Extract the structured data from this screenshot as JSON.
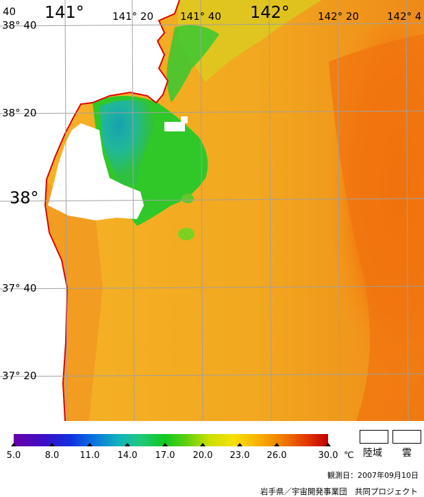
{
  "map": {
    "longitude_labels": [
      {
        "text": "141°",
        "large": true
      },
      {
        "text": "141° 20",
        "large": false
      },
      {
        "text": "141° 40",
        "large": false
      },
      {
        "text": "142°",
        "large": true
      },
      {
        "text": "142° 20",
        "large": false
      },
      {
        "text": "142° 4",
        "large": false
      }
    ],
    "latitude_labels": [
      {
        "text": "38° 40",
        "large": false
      },
      {
        "text": "38° 20",
        "large": false
      },
      {
        "text": "38°",
        "large": true
      },
      {
        "text": "37° 40",
        "large": false
      },
      {
        "text": "37° 20",
        "large": false
      }
    ],
    "corner_label": "40"
  },
  "colors": {
    "coastline": "#e00000",
    "grid": "#a0a0a0",
    "warm_water": "#f2a020",
    "hot_water": "#f07010",
    "cool_water": "#30c030",
    "cold_water": "#20a8a0",
    "land_cloud": "#ffffff"
  },
  "legend": {
    "colorbar_ticks": [
      "5.0",
      "8.0",
      "11.0",
      "14.0",
      "17.0",
      "20.0",
      "23.0",
      "26.0",
      "30.0"
    ],
    "unit": "℃",
    "land_label": "陸域",
    "cloud_label": "雲"
  },
  "footer": {
    "observation_date": "観測日：2007年09月10日",
    "credit": "岩手県／宇宙開発事業団　共同プロジェクト"
  }
}
